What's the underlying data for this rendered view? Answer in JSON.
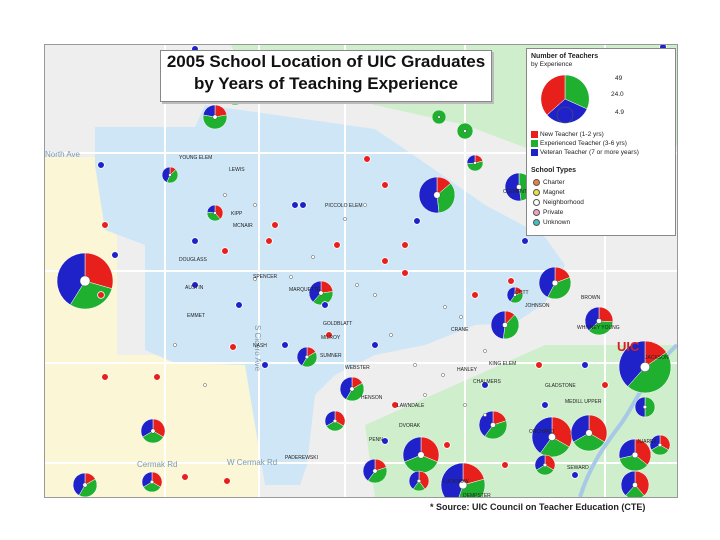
{
  "title": {
    "line1": "2005 School Location of UIC Graduates",
    "line2": "by Years of Teaching Experience"
  },
  "legend": {
    "heading": "Number of Teachers",
    "subheading": "by Experience",
    "size_values": [
      "49",
      "24.0",
      "4.9"
    ],
    "experience": [
      {
        "label": "New Teacher (1-2 yrs)",
        "color": "#e8201c"
      },
      {
        "label": "Experienced Teacher (3-6 yrs)",
        "color": "#20b030"
      },
      {
        "label": "Veteran Teacher (7 or more years)",
        "color": "#1e22c8"
      }
    ],
    "types_heading": "School Types",
    "types": [
      {
        "label": "Charter",
        "color": "#e88040"
      },
      {
        "label": "Magnet",
        "color": "#e8e040"
      },
      {
        "label": "Neighborhood",
        "color": "#ffffff"
      },
      {
        "label": "Private",
        "color": "#f0a0c0"
      },
      {
        "label": "Unknown",
        "color": "#40c0c0"
      }
    ]
  },
  "map": {
    "uic_label": "UIC",
    "streets": [
      "North Ave",
      "W Cermak Rd",
      "Cermak Rd",
      "S Cicero Ave"
    ],
    "school_labels": [
      "YOUNG ELEM",
      "LEWIS",
      "KIPP",
      "PICCOLO ELEM",
      "MCNAIR",
      "DOUGLASS",
      "SPENCER",
      "AUSTIN",
      "MARQUETTE",
      "EMMET",
      "GOLDBLATT",
      "MILROY",
      "NASH",
      "SUMNER",
      "WEBSTER",
      "HENSON",
      "LAWNDALE",
      "DVORAK",
      "PENN",
      "PADEREWSKI",
      "CLEMENTE",
      "CRANE",
      "COTT",
      "JOHNSON",
      "HANLEY",
      "KING ELEM",
      "CHALMERS",
      "GLADSTONE",
      "MEDILL UPPER",
      "WHITNEY YOUNG",
      "JACKSON",
      "BROWN",
      "JUAREZ",
      "ORCHARD",
      "SEWARD",
      "LUCKNOW",
      "DEMPSTER"
    ]
  },
  "source": "* Source: UIC Council on Teacher Education (CTE)"
}
